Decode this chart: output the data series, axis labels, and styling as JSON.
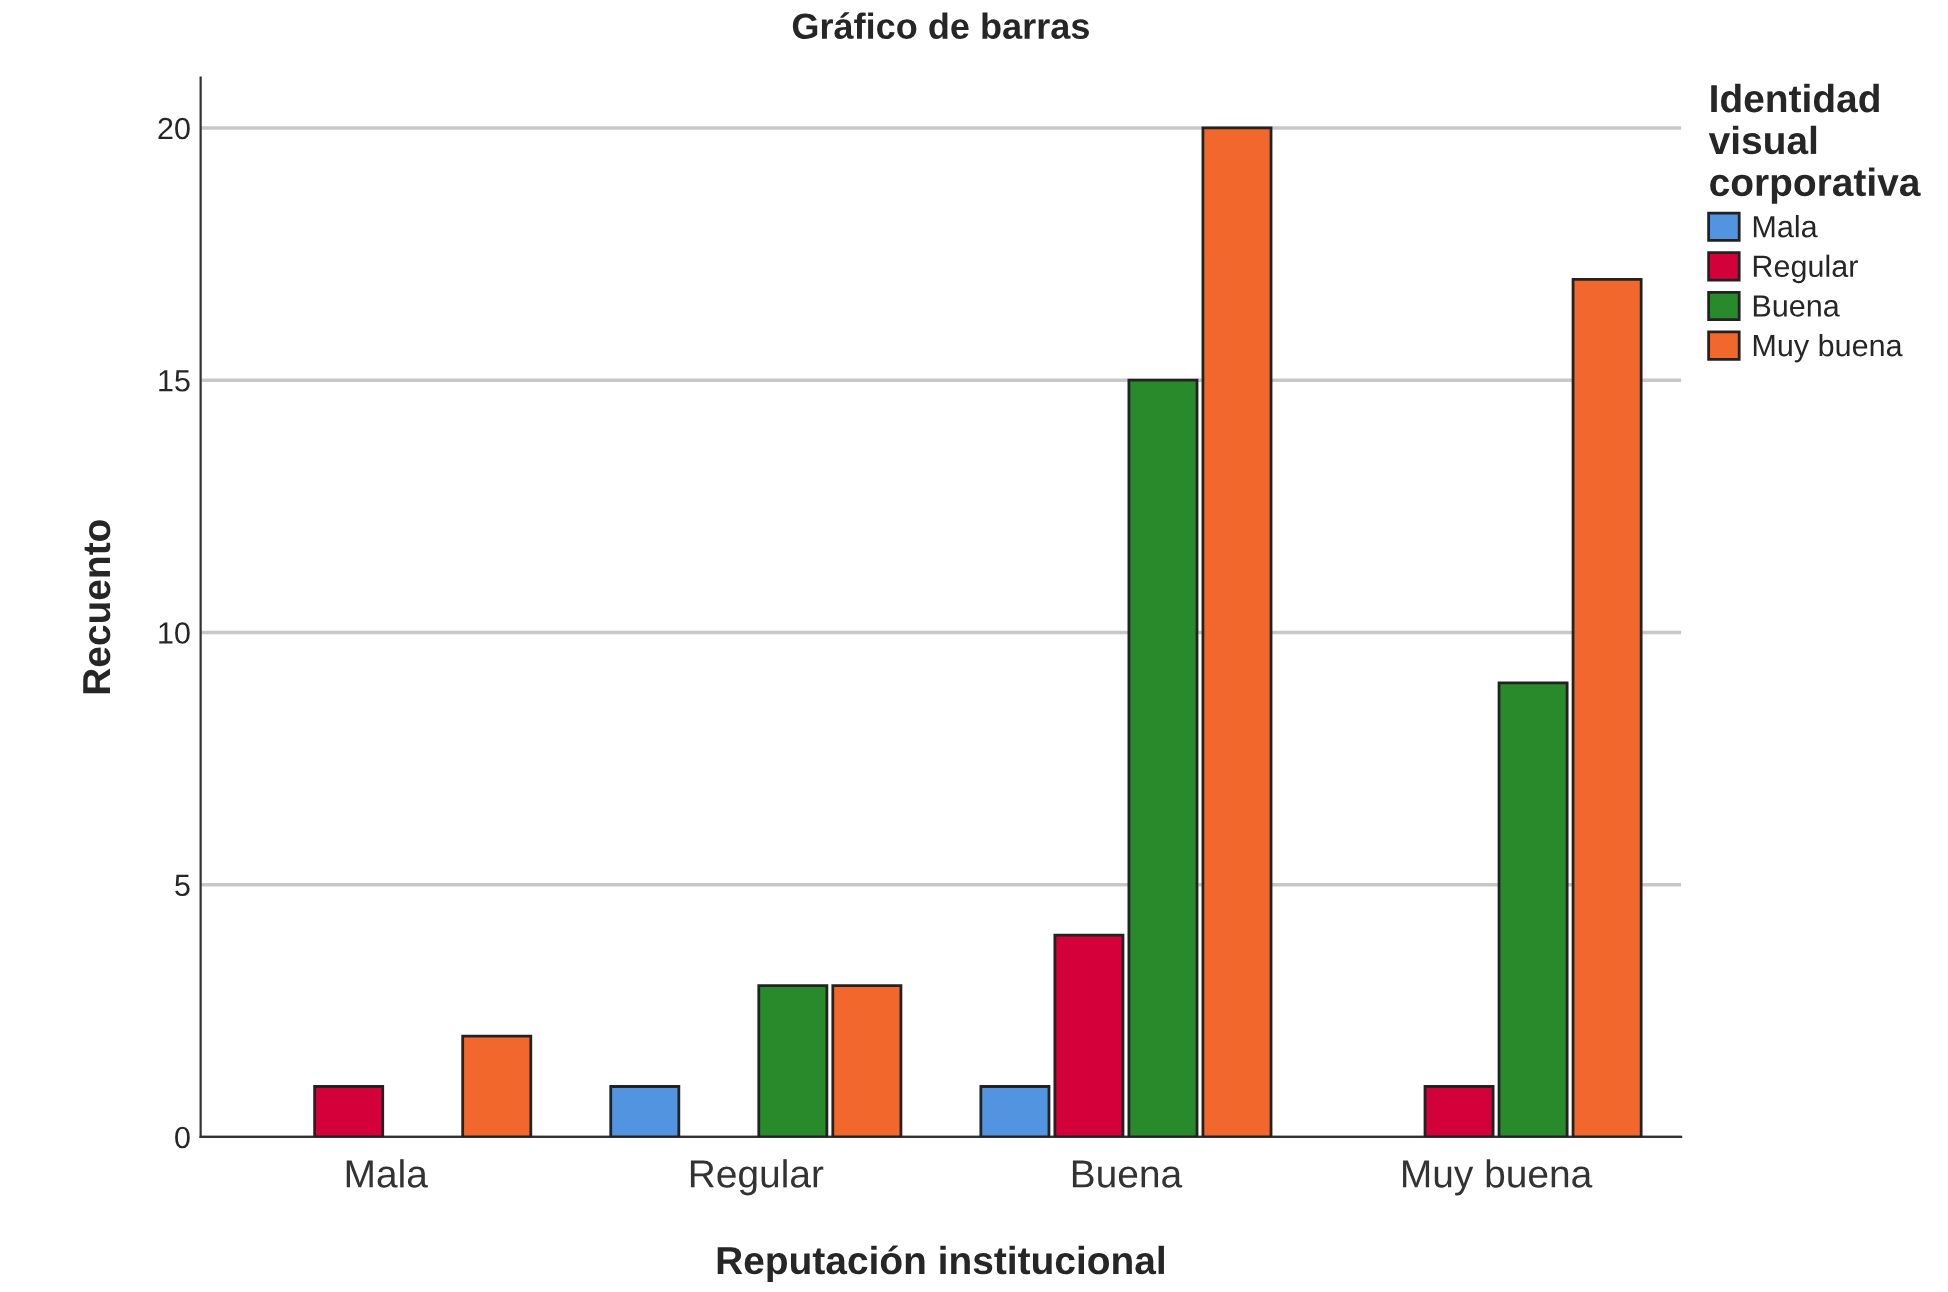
{
  "chart_data": {
    "type": "bar",
    "title": "Gráfico de barras",
    "xlabel": "Reputación institucional",
    "ylabel": "Recuento",
    "legend_title": "Identidad visual corporativa",
    "categories": [
      "Mala",
      "Regular",
      "Buena",
      "Muy buena"
    ],
    "series": [
      {
        "name": "Mala",
        "color": "#5394e0",
        "values": [
          null,
          1,
          1,
          null
        ]
      },
      {
        "name": "Regular",
        "color": "#d4003a",
        "values": [
          1,
          null,
          4,
          1
        ]
      },
      {
        "name": "Buena",
        "color": "#288a2a",
        "values": [
          null,
          3,
          15,
          9
        ]
      },
      {
        "name": "Muy buena",
        "color": "#f2682c",
        "values": [
          2,
          3,
          20,
          17
        ]
      }
    ],
    "ylim": [
      0,
      21
    ],
    "yticks": [
      0,
      5,
      10,
      15,
      20
    ],
    "grid": "y",
    "legend": "top right"
  }
}
